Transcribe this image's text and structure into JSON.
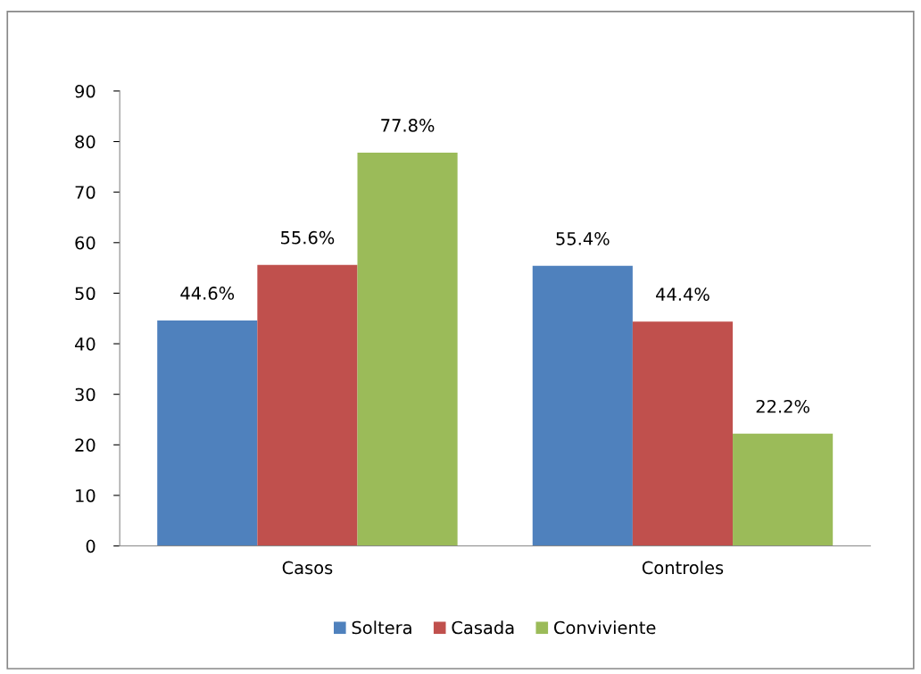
{
  "chart_data": {
    "type": "bar",
    "categories": [
      "Casos",
      "Controles"
    ],
    "series": [
      {
        "name": "Soltera",
        "color": "#4f81bd",
        "values": [
          44.6,
          55.4
        ],
        "value_labels": [
          "44.6%",
          "55.4%"
        ]
      },
      {
        "name": "Casada",
        "color": "#c0504d",
        "values": [
          55.6,
          44.4
        ],
        "value_labels": [
          "55.6%",
          "44.4%"
        ]
      },
      {
        "name": "Conviviente",
        "color": "#9bbb59",
        "values": [
          77.8,
          22.2
        ],
        "value_labels": [
          "77.8%",
          "22.2%"
        ]
      }
    ],
    "ylim": [
      0,
      90
    ],
    "yticks": [
      0,
      10,
      20,
      30,
      40,
      50,
      60,
      70,
      80,
      90
    ],
    "grid": false,
    "legend": "bottom"
  }
}
